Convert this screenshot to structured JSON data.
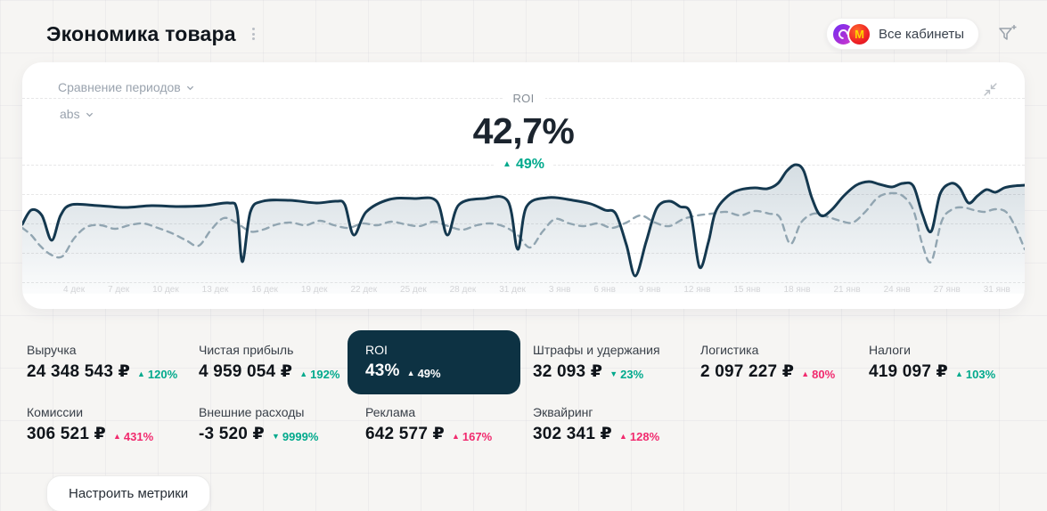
{
  "header": {
    "title": "Экономика товара",
    "cabinets_label": "Все кабинеты"
  },
  "chart_card": {
    "period_dropdown_label": "Сравнение периодов",
    "mode_dropdown_label": "abs",
    "metric_label": "ROI",
    "metric_value": "42,7%",
    "metric_change_arrow": "▲",
    "metric_change": "49%",
    "chart_data": {
      "type": "line",
      "title": "ROI",
      "x_labels": [
        "4 дек",
        "7 дек",
        "10 дек",
        "13 дек",
        "16 дек",
        "19 дек",
        "22 дек",
        "25 дек",
        "28 дек",
        "31 дек",
        "3 янв",
        "6 янв",
        "9 янв",
        "12 янв",
        "15 янв",
        "18 янв",
        "21 янв",
        "24 янв",
        "27 янв",
        "31 янв"
      ],
      "grid": true,
      "legend": "none",
      "series": [
        {
          "id": "current-period",
          "style": "solid",
          "color": "#14384f",
          "fill": true,
          "points": [
            [
              0,
              72
            ],
            [
              10,
              56
            ],
            [
              22,
              62
            ],
            [
              33,
              90
            ],
            [
              43,
              62
            ],
            [
              55,
              50
            ],
            [
              85,
              51
            ],
            [
              115,
              53
            ],
            [
              145,
              51
            ],
            [
              175,
              52
            ],
            [
              205,
              51
            ],
            [
              232,
              48
            ],
            [
              241,
              56
            ],
            [
              247,
              114
            ],
            [
              256,
              58
            ],
            [
              270,
              46
            ],
            [
              300,
              45
            ],
            [
              330,
              48
            ],
            [
              352,
              46
            ],
            [
              362,
              50
            ],
            [
              372,
              84
            ],
            [
              386,
              58
            ],
            [
              412,
              44
            ],
            [
              440,
              43
            ],
            [
              465,
              46
            ],
            [
              477,
              84
            ],
            [
              490,
              50
            ],
            [
              518,
              43
            ],
            [
              545,
              46
            ],
            [
              556,
              100
            ],
            [
              566,
              52
            ],
            [
              590,
              42
            ],
            [
              618,
              45
            ],
            [
              638,
              49
            ],
            [
              654,
              56
            ],
            [
              666,
              60
            ],
            [
              678,
              95
            ],
            [
              688,
              130
            ],
            [
              700,
              92
            ],
            [
              712,
              54
            ],
            [
              726,
              46
            ],
            [
              738,
              52
            ],
            [
              750,
              60
            ],
            [
              760,
              120
            ],
            [
              770,
              92
            ],
            [
              778,
              58
            ],
            [
              792,
              40
            ],
            [
              806,
              33
            ],
            [
              822,
              31
            ],
            [
              836,
              32
            ],
            [
              848,
              26
            ],
            [
              858,
              12
            ],
            [
              868,
              5
            ],
            [
              877,
              12
            ],
            [
              886,
              42
            ],
            [
              896,
              62
            ],
            [
              908,
              56
            ],
            [
              922,
              40
            ],
            [
              936,
              28
            ],
            [
              950,
              24
            ],
            [
              962,
              27
            ],
            [
              976,
              30
            ],
            [
              988,
              26
            ],
            [
              1000,
              29
            ],
            [
              1010,
              60
            ],
            [
              1020,
              80
            ],
            [
              1030,
              38
            ],
            [
              1042,
              26
            ],
            [
              1052,
              31
            ],
            [
              1062,
              48
            ],
            [
              1072,
              40
            ],
            [
              1082,
              33
            ],
            [
              1092,
              36
            ],
            [
              1102,
              31
            ],
            [
              1112,
              29
            ],
            [
              1125,
              28
            ]
          ]
        },
        {
          "id": "previous-period",
          "style": "dashed",
          "color": "#91a5b1",
          "fill": false,
          "points": [
            [
              0,
              76
            ],
            [
              10,
              84
            ],
            [
              20,
              96
            ],
            [
              32,
              106
            ],
            [
              45,
              108
            ],
            [
              58,
              88
            ],
            [
              72,
              75
            ],
            [
              88,
              73
            ],
            [
              104,
              77
            ],
            [
              120,
              73
            ],
            [
              136,
              71
            ],
            [
              152,
              76
            ],
            [
              168,
              82
            ],
            [
              184,
              90
            ],
            [
              198,
              96
            ],
            [
              212,
              78
            ],
            [
              226,
              65
            ],
            [
              240,
              70
            ],
            [
              256,
              80
            ],
            [
              270,
              78
            ],
            [
              286,
              72
            ],
            [
              302,
              70
            ],
            [
              318,
              73
            ],
            [
              334,
              68
            ],
            [
              350,
              73
            ],
            [
              366,
              76
            ],
            [
              382,
              71
            ],
            [
              398,
              73
            ],
            [
              414,
              69
            ],
            [
              430,
              72
            ],
            [
              446,
              74
            ],
            [
              462,
              69
            ],
            [
              478,
              74
            ],
            [
              494,
              78
            ],
            [
              510,
              73
            ],
            [
              526,
              71
            ],
            [
              542,
              75
            ],
            [
              556,
              84
            ],
            [
              570,
              98
            ],
            [
              584,
              80
            ],
            [
              598,
              66
            ],
            [
              614,
              71
            ],
            [
              630,
              74
            ],
            [
              646,
              71
            ],
            [
              662,
              76
            ],
            [
              678,
              70
            ],
            [
              694,
              62
            ],
            [
              710,
              70
            ],
            [
              726,
              74
            ],
            [
              742,
              66
            ],
            [
              758,
              62
            ],
            [
              774,
              60
            ],
            [
              790,
              58
            ],
            [
              806,
              62
            ],
            [
              822,
              57
            ],
            [
              838,
              60
            ],
            [
              850,
              64
            ],
            [
              862,
              94
            ],
            [
              874,
              70
            ],
            [
              888,
              60
            ],
            [
              902,
              63
            ],
            [
              918,
              68
            ],
            [
              932,
              70
            ],
            [
              946,
              58
            ],
            [
              960,
              42
            ],
            [
              974,
              37
            ],
            [
              988,
              40
            ],
            [
              1000,
              56
            ],
            [
              1010,
              94
            ],
            [
              1020,
              114
            ],
            [
              1032,
              68
            ],
            [
              1044,
              55
            ],
            [
              1056,
              53
            ],
            [
              1068,
              56
            ],
            [
              1080,
              58
            ],
            [
              1092,
              55
            ],
            [
              1104,
              58
            ],
            [
              1114,
              74
            ],
            [
              1125,
              100
            ]
          ]
        }
      ]
    }
  },
  "metrics": {
    "rows": [
      [
        {
          "label": "Выручка",
          "value": "24 348 543 ₽",
          "change": "120%",
          "direction": "up",
          "tone": "positive",
          "selected": false
        },
        {
          "label": "Чистая прибыль",
          "value": "4 959 054 ₽",
          "change": "192%",
          "direction": "up",
          "tone": "positive",
          "selected": false
        },
        {
          "label": "ROI",
          "value": "43%",
          "change": "49%",
          "direction": "up",
          "tone": "white",
          "selected": true
        },
        {
          "label": "Штрафы и удержания",
          "value": "32 093 ₽",
          "change": "23%",
          "direction": "down",
          "tone": "positive",
          "selected": false
        },
        {
          "label": "Логистика",
          "value": "2 097 227 ₽",
          "change": "80%",
          "direction": "up",
          "tone": "negative",
          "selected": false
        },
        {
          "label": "Налоги",
          "value": "419 097 ₽",
          "change": "103%",
          "direction": "up",
          "tone": "positive",
          "selected": false
        }
      ],
      [
        {
          "label": "Комиссии",
          "value": "306 521 ₽",
          "change": "431%",
          "direction": "up",
          "tone": "negative",
          "selected": false
        },
        {
          "label": "Внешние расходы",
          "value": "-3 520 ₽",
          "change": "9999%",
          "direction": "down",
          "tone": "positive",
          "selected": false
        },
        {
          "label": "Реклама",
          "value": "642 577 ₽",
          "change": "167%",
          "direction": "up",
          "tone": "negative",
          "selected": false
        },
        {
          "label": "Эквайринг",
          "value": "302 341 ₽",
          "change": "128%",
          "direction": "up",
          "tone": "negative",
          "selected": false
        }
      ]
    ]
  },
  "footer": {
    "configure_label": "Настроить метрики"
  },
  "colors": {
    "accent_green": "#00a98c",
    "accent_pink": "#f12a6e",
    "line_solid": "#14384f",
    "line_dashed": "#91a5b1",
    "selected_card_bg": "#0d3243"
  }
}
